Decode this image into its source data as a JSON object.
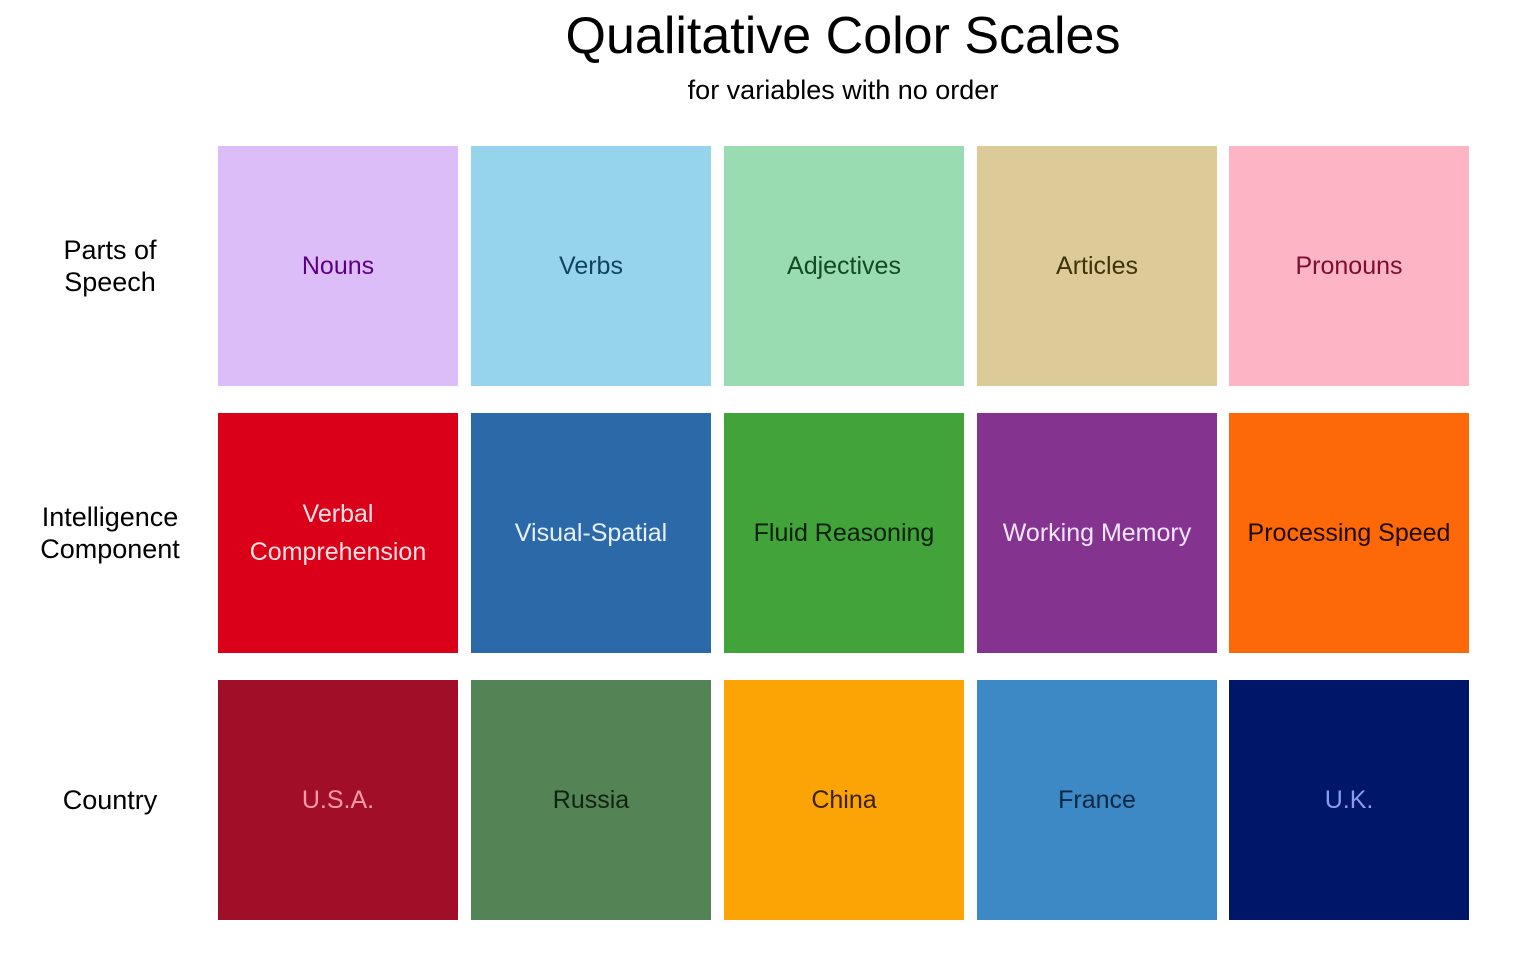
{
  "title": "Qualitative Color Scales",
  "subtitle": "for variables with no order",
  "rows": [
    {
      "label": "Parts of\nSpeech",
      "tiles": [
        {
          "label": "Nouns",
          "fill": "#dcbdf7",
          "text_color": "#5b0085"
        },
        {
          "label": "Verbs",
          "fill": "#96d4ec",
          "text_color": "#0d4560"
        },
        {
          "label": "Adjectives",
          "fill": "#9adcb1",
          "text_color": "#124a28"
        },
        {
          "label": "Articles",
          "fill": "#dccb98",
          "text_color": "#3e3208"
        },
        {
          "label": "Pronouns",
          "fill": "#fdb5c5",
          "text_color": "#7a0e30"
        }
      ]
    },
    {
      "label": "Intelligence\nComponent",
      "tiles": [
        {
          "label": "Verbal\nComprehension",
          "fill": "#da001a",
          "text_color": "#ffe3e3"
        },
        {
          "label": "Visual-Spatial",
          "fill": "#2c69a8",
          "text_color": "#e8f0ff"
        },
        {
          "label": "Fluid Reasoning",
          "fill": "#41a33a",
          "text_color": "#0a1f08"
        },
        {
          "label": "Working Memory",
          "fill": "#84338f",
          "text_color": "#f2e6ff"
        },
        {
          "label": "Processing Speed",
          "fill": "#fd6808",
          "text_color": "#1e0b00"
        }
      ]
    },
    {
      "label": "Country",
      "tiles": [
        {
          "label": "U.S.A.",
          "fill": "#a00e28",
          "text_color": "#ff9aa2"
        },
        {
          "label": "Russia",
          "fill": "#548355",
          "text_color": "#0f2410"
        },
        {
          "label": "China",
          "fill": "#fca305",
          "text_color": "#3a2200"
        },
        {
          "label": "France",
          "fill": "#3c89c6",
          "text_color": "#0b2842"
        },
        {
          "label": "U.K.",
          "fill": "#001668",
          "text_color": "#8a9bf0"
        }
      ]
    }
  ]
}
